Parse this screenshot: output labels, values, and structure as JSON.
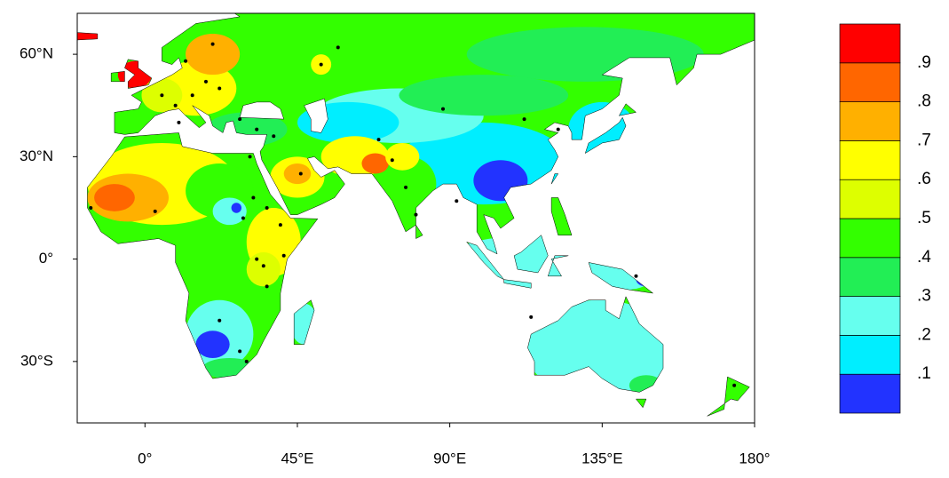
{
  "chart_data": {
    "type": "contour-map",
    "xlim": [
      -20,
      180
    ],
    "ylim": [
      -48,
      72
    ],
    "xticks": [
      {
        "value": 0,
        "label": "0°"
      },
      {
        "value": 45,
        "label": "45°E"
      },
      {
        "value": 90,
        "label": "90°E"
      },
      {
        "value": 135,
        "label": "135°E"
      },
      {
        "value": 180,
        "label": "180°"
      }
    ],
    "yticks": [
      {
        "value": 60,
        "label": "60°N"
      },
      {
        "value": 30,
        "label": "30°N"
      },
      {
        "value": 0,
        "label": "0°"
      },
      {
        "value": -30,
        "label": "30°S"
      }
    ],
    "colorbar": {
      "clim": [
        0,
        1
      ],
      "levels": [
        {
          "value": 0.1,
          "label": ".1"
        },
        {
          "value": 0.2,
          "label": ".2"
        },
        {
          "value": 0.3,
          "label": ".3"
        },
        {
          "value": 0.4,
          "label": ".4"
        },
        {
          "value": 0.5,
          "label": ".5"
        },
        {
          "value": 0.6,
          "label": ".6"
        },
        {
          "value": 0.7,
          "label": ".7"
        },
        {
          "value": 0.8,
          "label": ".8"
        },
        {
          "value": 0.9,
          "label": ".9"
        }
      ],
      "colors": [
        "#2233ff",
        "#00eeff",
        "#66ffee",
        "#22ee55",
        "#33ff00",
        "#ddff00",
        "#ffff00",
        "#ffb000",
        "#ff6600",
        "#ff0000"
      ]
    },
    "sites": {
      "lon": [
        -16,
        3,
        9,
        14,
        18,
        22,
        10,
        5,
        12,
        20,
        28,
        33,
        38,
        31,
        36,
        46,
        52,
        57,
        69,
        73,
        77,
        80,
        88,
        92,
        112,
        122,
        145,
        114,
        174,
        22,
        28,
        30,
        33,
        36,
        40,
        41,
        29,
        32,
        35
      ],
      "lat": [
        15,
        14,
        45,
        48,
        52,
        50,
        40,
        48,
        58,
        63,
        41,
        38,
        36,
        30,
        15,
        25,
        57,
        62,
        35,
        29,
        21,
        13,
        44,
        17,
        41,
        38,
        -5,
        -17,
        -37,
        -18,
        -27,
        -30,
        0,
        -8,
        10,
        1,
        12,
        18,
        -2
      ]
    }
  }
}
